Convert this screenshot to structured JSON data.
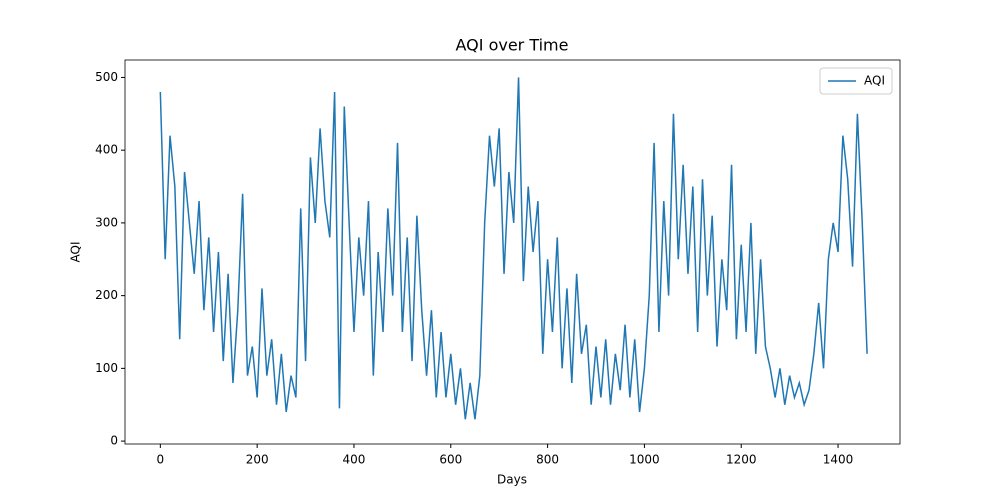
{
  "chart_data": {
    "type": "line",
    "title": "AQI over Time",
    "x_label": "Days",
    "y_label": "AQI",
    "x": [
      0,
      10,
      20,
      30,
      40,
      50,
      60,
      70,
      80,
      90,
      100,
      110,
      120,
      130,
      140,
      150,
      160,
      170,
      180,
      190,
      200,
      210,
      220,
      230,
      240,
      250,
      260,
      270,
      280,
      290,
      300,
      310,
      320,
      330,
      340,
      350,
      360,
      370,
      380,
      390,
      400,
      410,
      420,
      430,
      440,
      450,
      460,
      470,
      480,
      490,
      500,
      510,
      520,
      530,
      540,
      550,
      560,
      570,
      580,
      590,
      600,
      610,
      620,
      630,
      640,
      650,
      660,
      670,
      680,
      690,
      700,
      710,
      720,
      730,
      740,
      750,
      760,
      770,
      780,
      790,
      800,
      810,
      820,
      830,
      840,
      850,
      860,
      870,
      880,
      890,
      900,
      910,
      920,
      930,
      940,
      950,
      960,
      970,
      980,
      990,
      1000,
      1010,
      1020,
      1030,
      1040,
      1050,
      1060,
      1070,
      1080,
      1090,
      1100,
      1110,
      1120,
      1130,
      1140,
      1150,
      1160,
      1170,
      1180,
      1190,
      1200,
      1210,
      1220,
      1230,
      1240,
      1250,
      1260,
      1270,
      1280,
      1290,
      1300,
      1310,
      1320,
      1330,
      1340,
      1350,
      1360,
      1370,
      1380,
      1390,
      1400,
      1410,
      1420,
      1430,
      1440,
      1450,
      1460
    ],
    "series": [
      {
        "name": "AQI",
        "color": "#1f77b4",
        "values": [
          480,
          250,
          420,
          350,
          140,
          370,
          300,
          230,
          330,
          180,
          280,
          150,
          260,
          110,
          230,
          80,
          180,
          340,
          90,
          130,
          60,
          210,
          90,
          140,
          50,
          120,
          40,
          90,
          60,
          320,
          110,
          390,
          300,
          430,
          330,
          280,
          480,
          45,
          460,
          300,
          150,
          280,
          200,
          330,
          90,
          260,
          150,
          320,
          200,
          410,
          150,
          280,
          110,
          310,
          180,
          90,
          180,
          60,
          150,
          60,
          120,
          50,
          100,
          30,
          80,
          30,
          90,
          300,
          420,
          350,
          430,
          230,
          370,
          300,
          500,
          220,
          350,
          260,
          330,
          120,
          250,
          150,
          280,
          100,
          210,
          80,
          230,
          120,
          160,
          50,
          130,
          60,
          140,
          50,
          120,
          70,
          160,
          60,
          140,
          40,
          100,
          200,
          410,
          150,
          330,
          200,
          450,
          250,
          380,
          230,
          350,
          150,
          360,
          200,
          310,
          130,
          250,
          180,
          380,
          140,
          270,
          150,
          300,
          120,
          250,
          130,
          100,
          60,
          100,
          50,
          90,
          60,
          80,
          50,
          70,
          120,
          190,
          100,
          250,
          300,
          260,
          420,
          360,
          240,
          450,
          300,
          120
        ]
      }
    ],
    "xlim": [
      -73,
      1528
    ],
    "ylim": [
      -4,
      524
    ],
    "xticks": [
      0,
      200,
      400,
      600,
      800,
      1000,
      1200,
      1400
    ],
    "yticks": [
      0,
      100,
      200,
      300,
      400,
      500
    ],
    "legend": "upper right"
  }
}
